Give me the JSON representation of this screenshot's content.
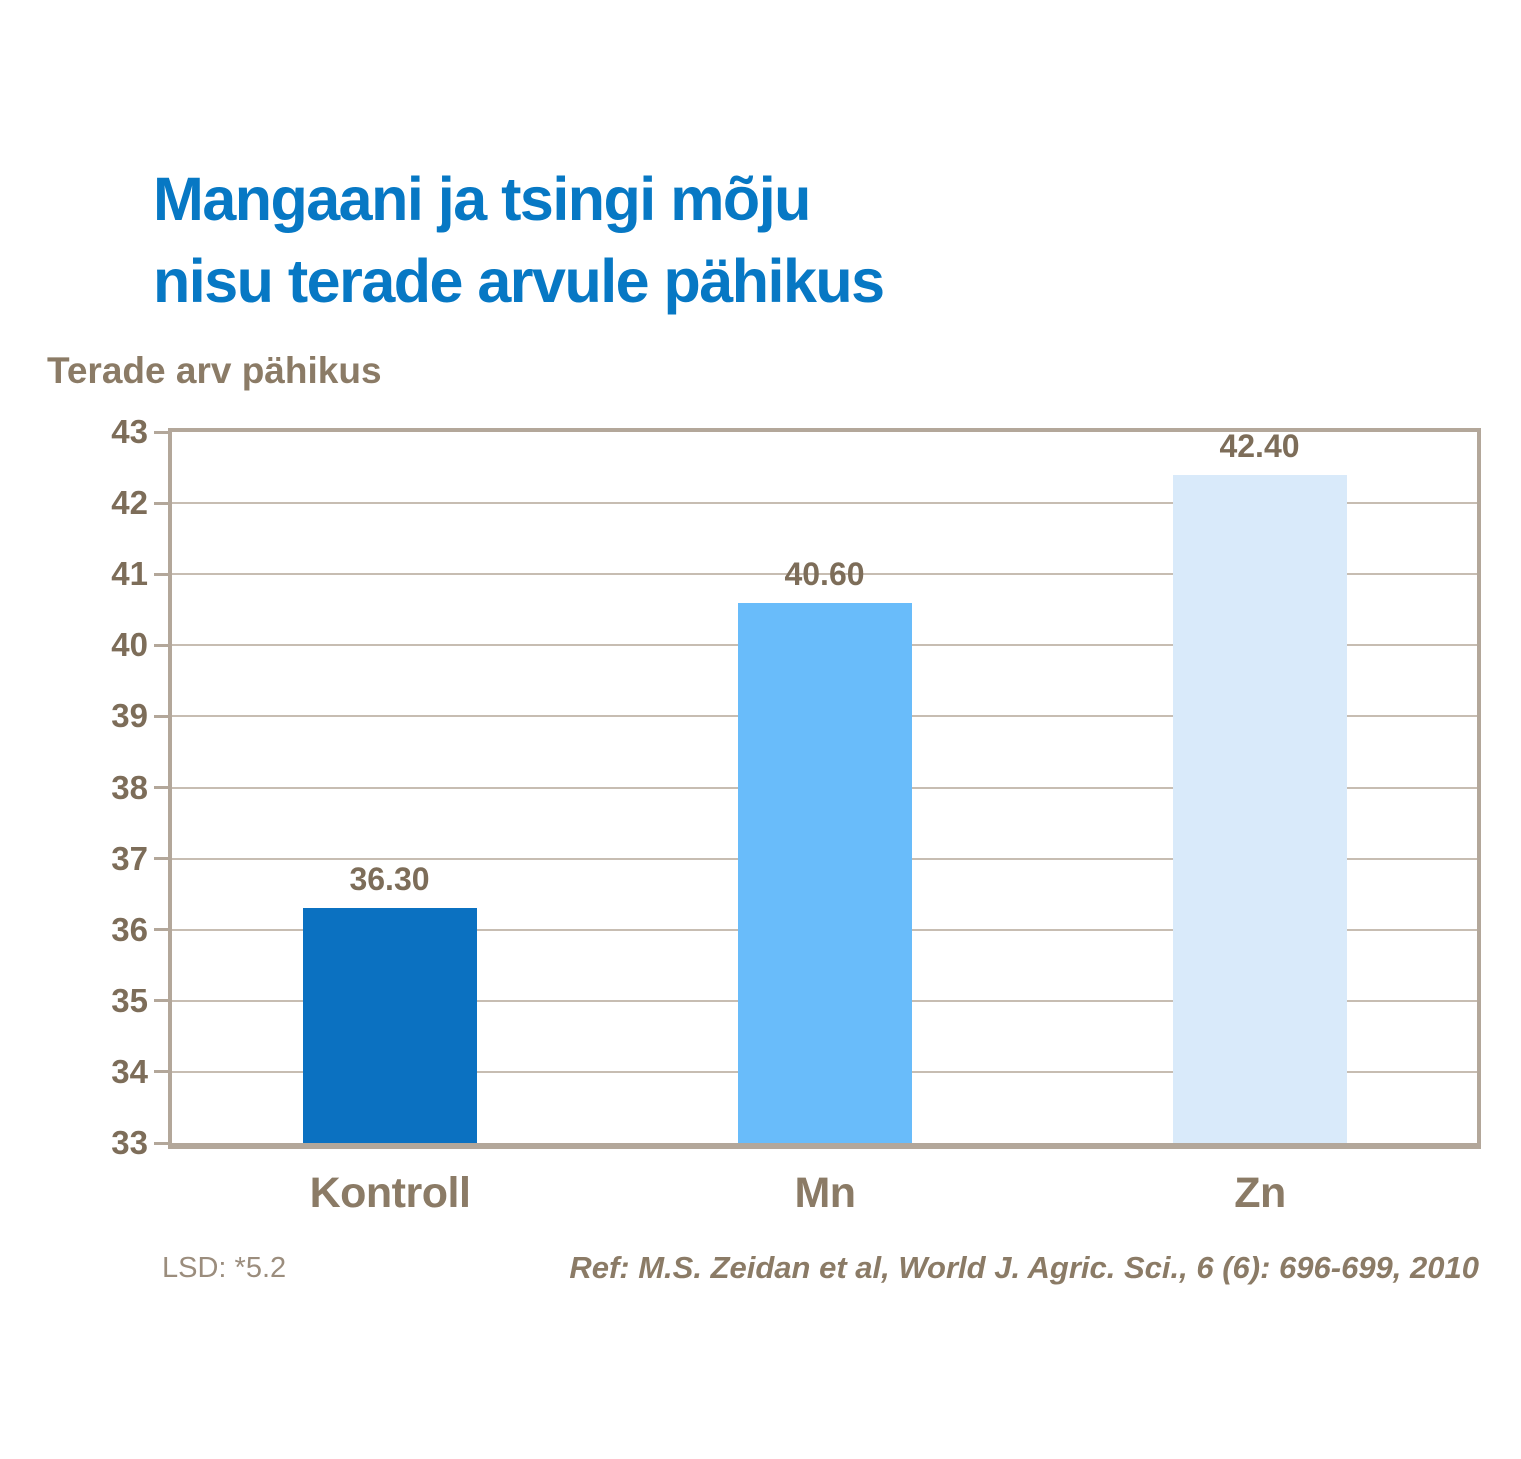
{
  "title": {
    "line1": "Mangaani ja tsingi mõju",
    "line2": "nisu terade arvule pähikus"
  },
  "footer": {
    "lsd": "LSD: *5.2",
    "reference": "Ref: M.S. Zeidan et al, World J. Agric. Sci., 6 (6): 696-699, 2010"
  },
  "chart_data": {
    "type": "bar",
    "title": "Mangaani ja tsingi mõju nisu terade arvule pähikus",
    "axis_title": "Terade arv pähikus",
    "xlabel": "",
    "ylabel": "Terade arv pähikus",
    "categories": [
      "Kontroll",
      "Mn",
      "Zn"
    ],
    "values": [
      36.3,
      40.6,
      42.4
    ],
    "value_labels": [
      "36.30",
      "40.60",
      "42.40"
    ],
    "bar_colors": [
      "#0b71c1",
      "#69bcfa",
      "#d9eafa"
    ],
    "ylim": [
      33,
      43
    ],
    "ytick_step": 1,
    "grid": true,
    "legend": false
  },
  "colors": {
    "title_blue": "#0778c4",
    "text_brown": "#8b7b66",
    "num_brown": "#7d6d59",
    "lsd_gray": "#9b8d7d",
    "frame": "#b3a79a",
    "gridline": "#c7bdb2"
  }
}
